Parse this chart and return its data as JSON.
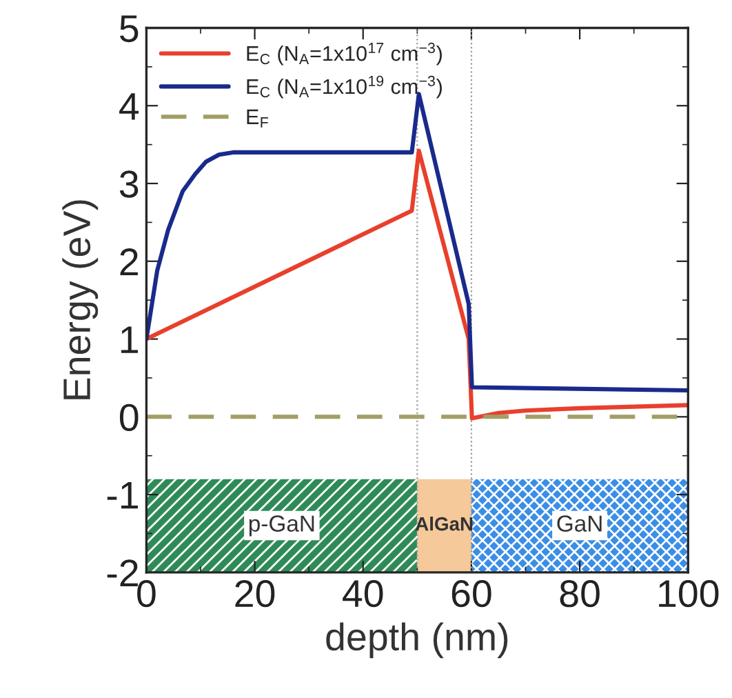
{
  "chart_data": {
    "type": "line",
    "xlabel": "depth (nm)",
    "ylabel": "Energy (eV)",
    "xlim": [
      0,
      100
    ],
    "xticks": [
      0,
      20,
      40,
      60,
      80,
      100
    ],
    "ylim": [
      -2,
      5
    ],
    "yticks": [
      -2,
      -1,
      0,
      1,
      2,
      3,
      4,
      5
    ],
    "grid": false,
    "legend": "top left",
    "line_style": "solid",
    "marker": "none",
    "series": [
      {
        "name": "E$_{C}$ (N$_{A}$=1x10$^{17}$ cm$^{−3}$)",
        "color": "#e8402c",
        "x": [
          0,
          49,
          50.3,
          59.5,
          60.1,
          65,
          70,
          80,
          90,
          100
        ],
        "values": [
          1.0,
          2.65,
          3.42,
          1.0,
          -0.02,
          0.05,
          0.08,
          0.11,
          0.13,
          0.15
        ]
      },
      {
        "name": "E$_{C}$ (N$_{A}$=1x10$^{19}$ cm$^{−3}$)",
        "color": "#1a2a8c",
        "x": [
          0,
          2,
          4,
          6.7,
          9,
          11,
          13.4,
          16,
          20,
          49,
          50.3,
          59.5,
          60.1,
          100
        ],
        "values": [
          1.0,
          1.88,
          2.4,
          2.9,
          3.12,
          3.28,
          3.37,
          3.4,
          3.4,
          3.4,
          4.15,
          1.45,
          0.38,
          0.34
        ]
      },
      {
        "name": "E$_{F}$",
        "color": "#a39e66",
        "line_style": "dashed",
        "x": [
          0,
          100
        ],
        "values": [
          0,
          0
        ]
      }
    ],
    "ref_lines": [
      {
        "axis": "x",
        "value": 50,
        "color": "#999999",
        "line_style": "dotted"
      },
      {
        "axis": "x",
        "value": 60,
        "color": "#999999",
        "line_style": "dotted"
      }
    ],
    "bands": [
      {
        "axis": "x",
        "from": 0,
        "to": 50,
        "label": "p-GaN",
        "color": "#2e8b57"
      },
      {
        "axis": "x",
        "from": 50,
        "to": 60,
        "label": "AlGaN",
        "color": "#f5c99a"
      },
      {
        "axis": "x",
        "from": 60,
        "to": 100,
        "label": "GaN",
        "color": "#3a8ee6"
      }
    ]
  }
}
